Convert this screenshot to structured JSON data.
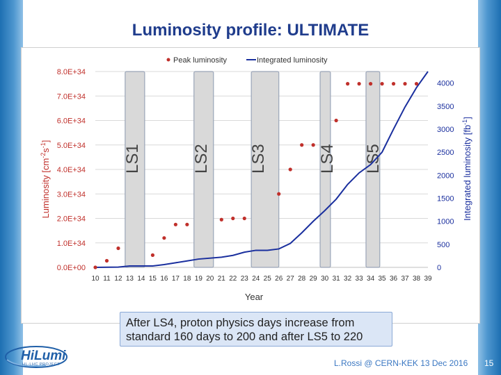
{
  "slide": {
    "title": "Luminosity profile: ULTIMATE",
    "callout": "After LS4, proton physics days increase from standard 160 days to 200 and after LS5 to 220",
    "footer": "L.Rossi @ CERN-KEK 13 Dec 2016",
    "page_number": "15",
    "logo_text": "HiLumi",
    "logo_sub": "HL-LHC PROJECT"
  },
  "colors": {
    "peak": "#c0302b",
    "integrated": "#1a2f9e",
    "shutdown_fill": "#d9d9d9",
    "shutdown_stroke": "#9aa5b8",
    "grid": "#d9d9d9",
    "axis_left": "#c0302b",
    "axis_right": "#1a2f9e"
  },
  "chart_data": {
    "type": "line",
    "legend": [
      "Peak luminosity",
      "Integrated luminosity"
    ],
    "legend_position": "top",
    "xlabel": "Year",
    "ylabel_left_base": "Luminosity [cm",
    "ylabel_left_sup1": "-2",
    "ylabel_left_mid": "s",
    "ylabel_left_sup2": "-1",
    "ylabel_left_end": "]",
    "ylabel_right_base": "Integrated luminosity [fb",
    "ylabel_right_sup": "-1",
    "ylabel_right_end": "]",
    "x_ticks": [
      "10",
      "11",
      "12",
      "13",
      "14",
      "15",
      "16",
      "17",
      "18",
      "19",
      "20",
      "21",
      "22",
      "23",
      "24",
      "25",
      "26",
      "27",
      "28",
      "29",
      "30",
      "31",
      "32",
      "33",
      "34",
      "35",
      "36",
      "37",
      "38",
      "39"
    ],
    "x_range": [
      10,
      39
    ],
    "ylim_left": [
      0,
      8e+34
    ],
    "ylim_right": [
      0,
      4250
    ],
    "y_ticks_left": [
      "0.0E+00",
      "1.0E+34",
      "2.0E+34",
      "3.0E+34",
      "4.0E+34",
      "5.0E+34",
      "6.0E+34",
      "7.0E+34",
      "8.0E+34"
    ],
    "y_ticks_right": [
      "0",
      "500",
      "1000",
      "1500",
      "2000",
      "2500",
      "3000",
      "3500",
      "4000"
    ],
    "peak_luminosity": [
      {
        "x": 10,
        "y": 0.0
      },
      {
        "x": 11,
        "y": 0.27
      },
      {
        "x": 12,
        "y": 0.78
      },
      {
        "x": 15,
        "y": 0.5
      },
      {
        "x": 16,
        "y": 1.2
      },
      {
        "x": 17,
        "y": 1.75
      },
      {
        "x": 18,
        "y": 1.75
      },
      {
        "x": 21,
        "y": 1.95
      },
      {
        "x": 22,
        "y": 2.0
      },
      {
        "x": 23,
        "y": 2.0
      },
      {
        "x": 26,
        "y": 3.0
      },
      {
        "x": 27,
        "y": 4.0
      },
      {
        "x": 28,
        "y": 5.0
      },
      {
        "x": 29,
        "y": 5.0
      },
      {
        "x": 31,
        "y": 6.0
      },
      {
        "x": 32,
        "y": 7.5
      },
      {
        "x": 33,
        "y": 7.5
      },
      {
        "x": 34,
        "y": 7.5
      },
      {
        "x": 35,
        "y": 7.5
      },
      {
        "x": 36,
        "y": 7.5
      },
      {
        "x": 37,
        "y": 7.5
      },
      {
        "x": 38,
        "y": 7.5
      }
    ],
    "peak_units_note": "values in units of 1E+34",
    "integrated_luminosity": [
      {
        "x": 10,
        "y": 0
      },
      {
        "x": 12,
        "y": 5
      },
      {
        "x": 13,
        "y": 30
      },
      {
        "x": 15,
        "y": 30
      },
      {
        "x": 16,
        "y": 60
      },
      {
        "x": 17,
        "y": 100
      },
      {
        "x": 18,
        "y": 140
      },
      {
        "x": 19,
        "y": 180
      },
      {
        "x": 21,
        "y": 220
      },
      {
        "x": 22,
        "y": 260
      },
      {
        "x": 23,
        "y": 330
      },
      {
        "x": 24,
        "y": 370
      },
      {
        "x": 25,
        "y": 370
      },
      {
        "x": 26,
        "y": 400
      },
      {
        "x": 27,
        "y": 520
      },
      {
        "x": 28,
        "y": 750
      },
      {
        "x": 29,
        "y": 1000
      },
      {
        "x": 30,
        "y": 1230
      },
      {
        "x": 31,
        "y": 1480
      },
      {
        "x": 32,
        "y": 1800
      },
      {
        "x": 33,
        "y": 2050
      },
      {
        "x": 34,
        "y": 2230
      },
      {
        "x": 35,
        "y": 2500
      },
      {
        "x": 36,
        "y": 3000
      },
      {
        "x": 37,
        "y": 3480
      },
      {
        "x": 38,
        "y": 3900
      },
      {
        "x": 39,
        "y": 4250
      }
    ],
    "shutdowns": [
      {
        "label": "LS1",
        "start": 12.6,
        "end": 14.3
      },
      {
        "label": "LS2",
        "start": 18.6,
        "end": 20.3
      },
      {
        "label": "LS3",
        "start": 23.6,
        "end": 26.0
      },
      {
        "label": "LS4",
        "start": 29.6,
        "end": 30.5
      },
      {
        "label": "LS5",
        "start": 33.6,
        "end": 34.8
      }
    ]
  }
}
